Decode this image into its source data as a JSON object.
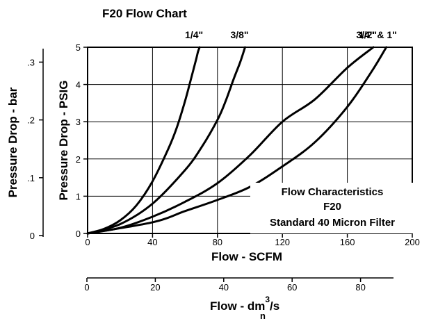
{
  "chart_data": {
    "type": "line",
    "title": "F20 Flow Chart",
    "xlabel": "Flow - SCFM",
    "ylabel": "Pressure Drop - PSIG",
    "xlim": [
      0,
      200
    ],
    "ylim": [
      0,
      5
    ],
    "x_ticks": [
      0,
      40,
      80,
      120,
      160,
      200
    ],
    "y_ticks": [
      0,
      1,
      2,
      3,
      4,
      5
    ],
    "grid": true,
    "series": [
      {
        "name": "1/4\"",
        "x": [
          0,
          10,
          20,
          30,
          40,
          50,
          55,
          60,
          64,
          67,
          68,
          69
        ],
        "y": [
          0,
          0.12,
          0.35,
          0.75,
          1.4,
          2.3,
          2.85,
          3.55,
          4.2,
          4.7,
          4.88,
          5.0
        ]
      },
      {
        "name": "3/8\"",
        "x": [
          0,
          20,
          40,
          60,
          70,
          80,
          85,
          90,
          94,
          97
        ],
        "y": [
          0,
          0.25,
          0.8,
          1.7,
          2.3,
          3.05,
          3.55,
          4.15,
          4.6,
          5.0
        ]
      },
      {
        "name": "1/2\"",
        "x": [
          0,
          20,
          40,
          60,
          80,
          100,
          120,
          140,
          160,
          176
        ],
        "y": [
          0,
          0.15,
          0.45,
          0.85,
          1.35,
          2.1,
          3.0,
          3.6,
          4.45,
          5.0
        ]
      },
      {
        "name": "3/4\" & 1\"",
        "x": [
          0,
          40,
          60,
          80,
          100,
          120,
          140,
          160,
          175,
          184
        ],
        "y": [
          0,
          0.3,
          0.6,
          0.9,
          1.25,
          1.8,
          2.45,
          3.4,
          4.35,
          5.0
        ]
      }
    ],
    "secondary_y": {
      "label": "Pressure Drop - bar",
      "ticks": [
        0,
        0.1,
        0.2,
        0.3
      ],
      "tick_labels": [
        "0",
        ".1",
        ".2",
        ".3"
      ]
    },
    "secondary_x": {
      "label_main": "Flow - dm",
      "label_sup": "3",
      "label_tail": "/s",
      "label_sub": "n",
      "ticks": [
        0,
        20,
        40,
        60,
        80
      ]
    },
    "annotation": [
      "Flow Characteristics",
      "F20",
      "Standard 40 Micron Filter"
    ]
  }
}
